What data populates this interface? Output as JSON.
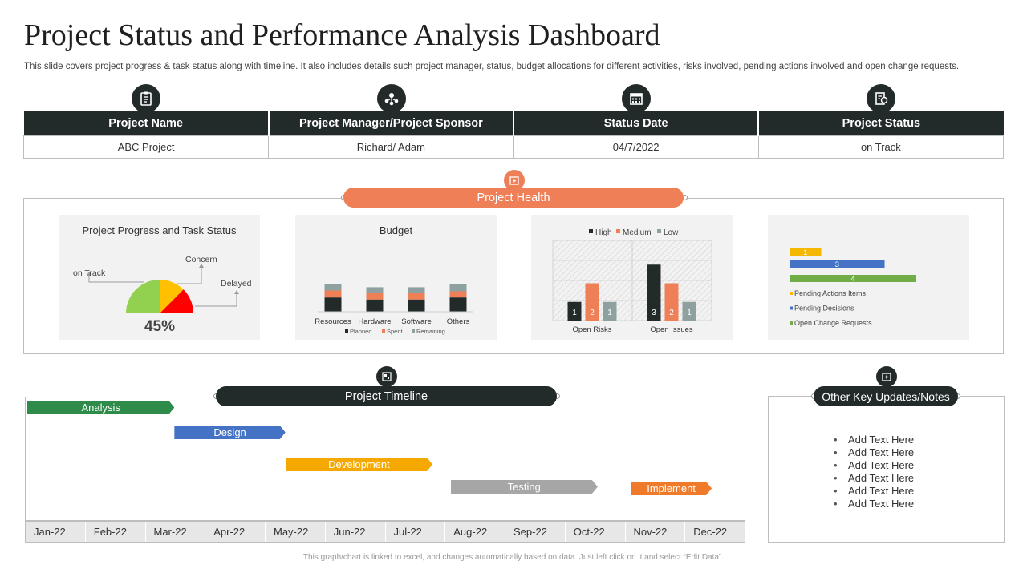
{
  "header": {
    "title": "Project Status and Performance Analysis Dashboard",
    "subtitle": "This slide covers project progress & task status along with timeline. It also includes details such project manager, status, budget allocations for different activities, risks involved, pending actions involved and open change requests."
  },
  "info_table": {
    "columns": [
      "Project Name",
      "Project Manager/Project Sponsor",
      "Status Date",
      "Project Status"
    ],
    "values": [
      "ABC Project",
      "Richard/ Adam",
      "04/7/2022",
      "on Track"
    ],
    "icons": [
      "clipboard-icon",
      "team-icon",
      "calendar-icon",
      "status-report-icon"
    ]
  },
  "health": {
    "label": "Project Health",
    "icon": "health-icon"
  },
  "colors": {
    "dark": "#232a2a",
    "orange": "#ef7f56",
    "green": "#2e8b4a",
    "blue": "#4472c4",
    "amber": "#f5a800",
    "grey": "#a6a6a6",
    "impl_orange": "#ef7a2a"
  },
  "chart_data": [
    {
      "type": "gauge",
      "title": "Project Progress and Task Status",
      "value_label": "45%",
      "categories": [
        "on Track",
        "Concern",
        "Delayed"
      ],
      "colors": [
        "#92d050",
        "#ffc000",
        "#ff0000"
      ],
      "values": [
        50,
        25,
        25
      ]
    },
    {
      "type": "bar",
      "stacked": true,
      "title": "Budget",
      "categories": [
        "Resources",
        "Hardware",
        "Software",
        "Others"
      ],
      "series": [
        {
          "name": "Planned",
          "color": "#232a2a",
          "values": [
            35,
            30,
            30,
            35
          ]
        },
        {
          "name": "Spent",
          "color": "#ef7f56",
          "values": [
            17,
            17,
            17,
            15
          ]
        },
        {
          "name": "Remaining",
          "color": "#8fa0a0",
          "values": [
            15,
            13,
            13,
            18
          ]
        }
      ]
    },
    {
      "type": "bar",
      "title": "",
      "categories": [
        "Open Risks",
        "Open Issues"
      ],
      "series": [
        {
          "name": "High",
          "color": "#232a2a",
          "values": [
            1,
            3
          ]
        },
        {
          "name": "Medium",
          "color": "#ef7f56",
          "values": [
            2,
            2
          ]
        },
        {
          "name": "Low",
          "color": "#8fa0a0",
          "values": [
            1,
            1
          ]
        }
      ],
      "ylim": [
        0,
        4
      ],
      "legend": "top"
    },
    {
      "type": "bar",
      "orientation": "horizontal",
      "title": "",
      "series": [
        {
          "name": "Pending Actions Items",
          "color": "#f5b800",
          "value": 1
        },
        {
          "name": "Pending Decisions",
          "color": "#4472c4",
          "value": 3
        },
        {
          "name": "Open Change Requests",
          "color": "#70ad47",
          "value": 4
        }
      ],
      "legend": "bottom"
    }
  ],
  "timeline": {
    "label": "Project Timeline",
    "icon": "timeline-icon",
    "months": [
      "Jan-22",
      "Feb-22",
      "Mar-22",
      "Apr-22",
      "May-22",
      "Jun-22",
      "Jul-22",
      "Aug-22",
      "Sep-22",
      "Oct-22",
      "Nov-22",
      "Dec-22"
    ],
    "tasks": [
      {
        "name": "Analysis",
        "color": "#2e8b4a",
        "start_month": 0.0,
        "end_month": 2.45
      },
      {
        "name": "Design",
        "color": "#4472c4",
        "start_month": 2.45,
        "end_month": 4.3
      },
      {
        "name": "Development",
        "color": "#f5a800",
        "start_month": 4.3,
        "end_month": 6.75
      },
      {
        "name": "Testing",
        "color": "#a6a6a6",
        "start_month": 7.05,
        "end_month": 9.5
      },
      {
        "name": "Implement",
        "color": "#ef7a2a",
        "start_month": 10.05,
        "end_month": 11.4
      }
    ]
  },
  "notes": {
    "label": "Other Key Updates/Notes",
    "icon": "notes-icon",
    "items": [
      "Add Text Here",
      "Add Text Here",
      "Add Text Here",
      "Add Text Here",
      "Add Text Here",
      "Add Text Here"
    ]
  },
  "footer": "This graph/chart is linked to excel, and changes automatically based on data. Just left click on it and select “Edit Data”."
}
